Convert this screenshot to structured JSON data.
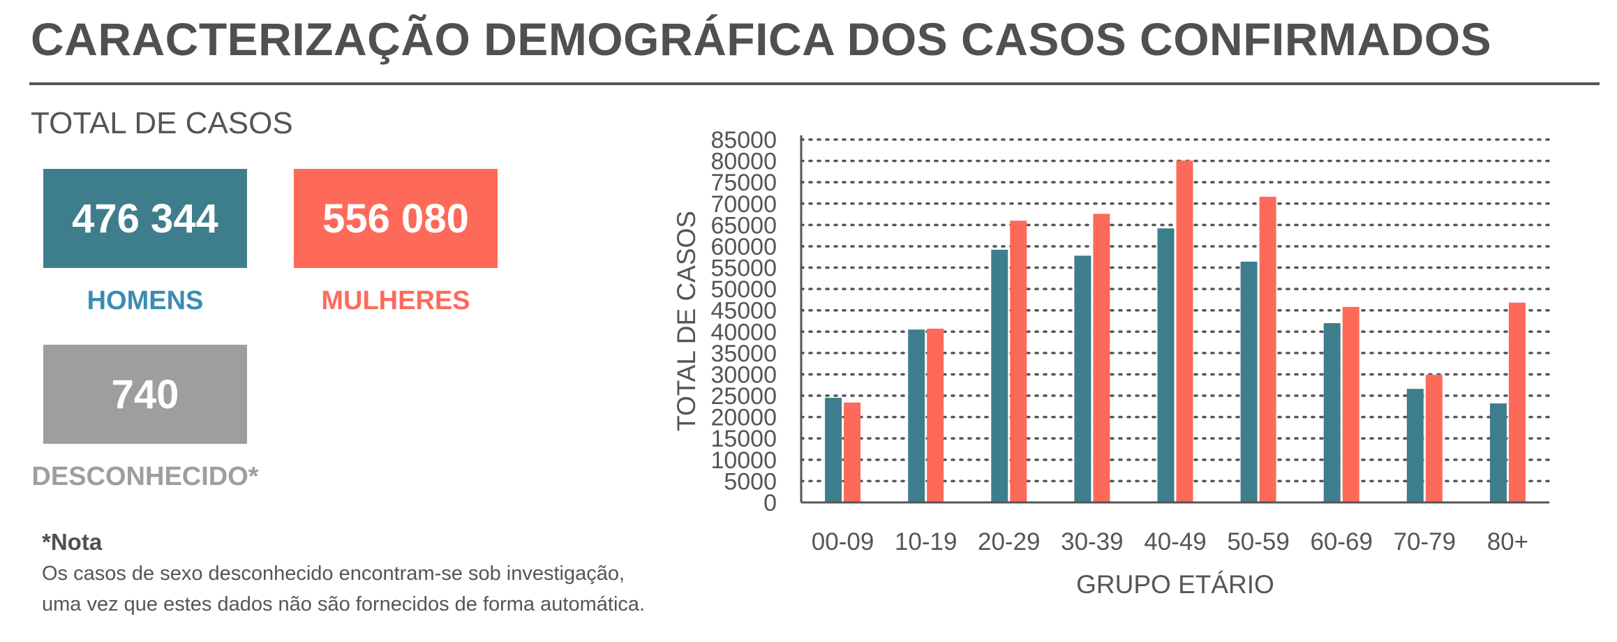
{
  "title": "CARACTERIZAÇÃO DEMOGRÁFICA DOS CASOS CONFIRMADOS",
  "totals": {
    "section_title": "TOTAL DE CASOS",
    "men": {
      "value": "476 344",
      "label": "HOMENS",
      "color": "#3e7e8c",
      "label_color": "#3a8db4"
    },
    "women": {
      "value": "556 080",
      "label": "MULHERES",
      "color": "#fe6a5a",
      "label_color": "#fe6a5a"
    },
    "unknown": {
      "value": "740",
      "label": "DESCONHECIDO*",
      "color": "#9e9e9e",
      "label_color": "#9e9e9e"
    }
  },
  "note": {
    "title": "*Nota",
    "line1": "Os casos de sexo desconhecido encontram-se sob investigação,",
    "line2": "uma vez que estes dados não são fornecidos de forma automática."
  },
  "chart_data": {
    "type": "bar",
    "categories": [
      "00-09",
      "10-19",
      "20-29",
      "30-39",
      "40-49",
      "50-59",
      "60-69",
      "70-79",
      "80+"
    ],
    "series": [
      {
        "color": "#3e7e8c",
        "values": [
          24500,
          40500,
          59200,
          57800,
          64200,
          56400,
          42000,
          26600,
          23200
        ]
      },
      {
        "color": "#fe6a5a",
        "values": [
          23400,
          40700,
          66000,
          67600,
          80100,
          71600,
          45800,
          29900,
          46800
        ]
      }
    ],
    "xlabel": "GRUPO ETÁRIO",
    "ylabel": "TOTAL DE CASOS",
    "ylim": [
      0,
      85000
    ],
    "yticks": [
      0,
      5000,
      10000,
      15000,
      20000,
      25000,
      30000,
      35000,
      40000,
      45000,
      50000,
      55000,
      60000,
      65000,
      70000,
      75000,
      80000,
      85000
    ],
    "grid": true
  }
}
